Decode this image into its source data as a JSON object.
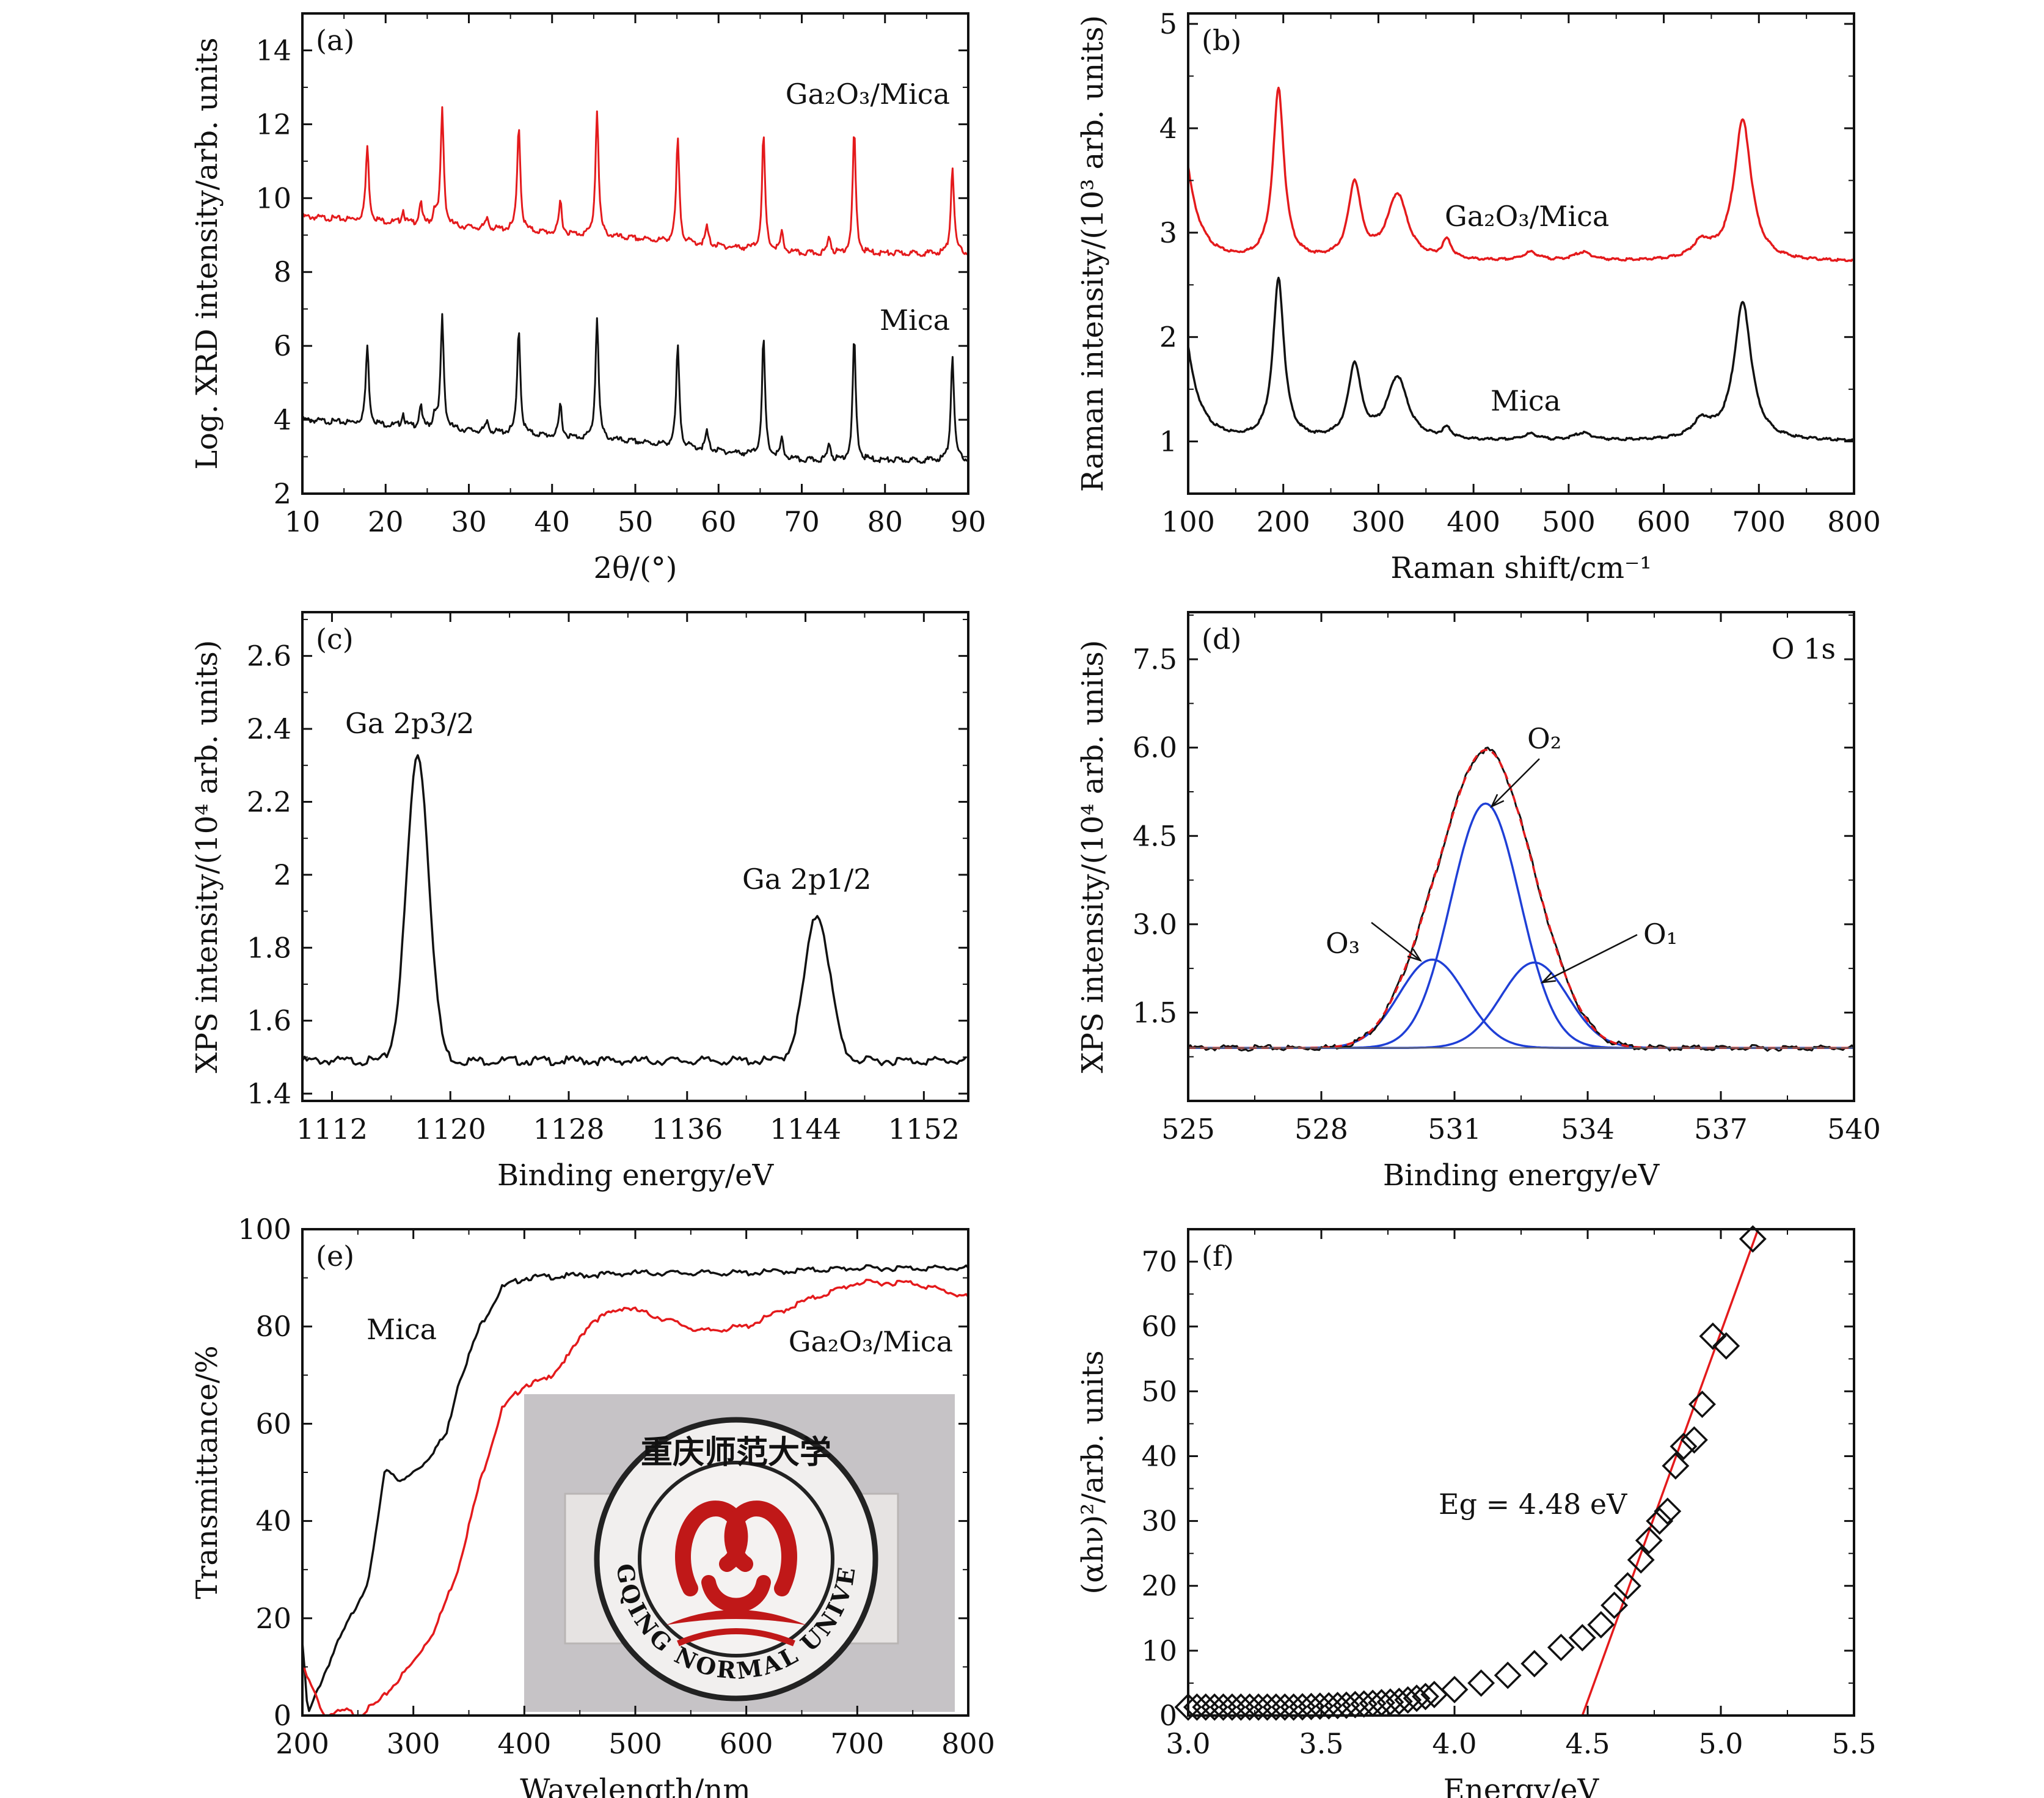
{
  "colors": {
    "mica": "#111111",
    "ga2o3_mica": "#e41a1c",
    "fit": "#1f3fd6",
    "fit_line": "#e41a1c",
    "axis": "#111111"
  },
  "panels": {
    "a": {
      "label": "(a)",
      "xlabel": "2θ/(°)",
      "ylabel": "Log. XRD intensity/arb. units",
      "ann_ga": "Ga₂O₃/Mica",
      "ann_mica": "Mica"
    },
    "b": {
      "label": "(b)",
      "xlabel": "Raman shift/cm⁻¹",
      "ylabel": "Raman intensity/(10³ arb. units)",
      "ann_ga": "Ga₂O₃/Mica",
      "ann_mica": "Mica"
    },
    "c": {
      "label": "(c)",
      "xlabel": "Binding energy/eV",
      "ylabel": "XPS intensity/(10⁴ arb. units)",
      "ann_p32": "Ga 2p3/2",
      "ann_p12": "Ga 2p1/2"
    },
    "d": {
      "label": "(d)",
      "xlabel": "Binding energy/eV",
      "ylabel": "XPS intensity/(10⁴ arb. units)",
      "ann_o1s": "O 1s",
      "ann_o1": "O₁",
      "ann_o2": "O₂",
      "ann_o3": "O₃"
    },
    "e": {
      "label": "(e)",
      "xlabel": "Wavelength/nm",
      "ylabel": "Transmittance/%",
      "ann_mica": "Mica",
      "ann_ga": "Ga₂O₃/Mica",
      "photo_text": "CHONGQING NORMAL UNIVERSITY",
      "photo_seal": "重庆师范大学"
    },
    "f": {
      "label": "(f)",
      "xlabel": "Energy/eV",
      "ylabel": "(αhν)²/arb. units",
      "ann_eg": "Eg = 4.48 eV"
    }
  },
  "chart_data": [
    {
      "panel": "a",
      "type": "line",
      "xlim": [
        10,
        90
      ],
      "ylim": [
        2,
        15
      ],
      "xticks": [
        10,
        20,
        30,
        40,
        50,
        60,
        70,
        80,
        90
      ],
      "yticks": [
        2,
        4,
        6,
        8,
        10,
        12,
        14
      ],
      "baseline": {
        "Mica": [
          [
            10,
            4.0
          ],
          [
            30,
            3.7
          ],
          [
            50,
            3.4
          ],
          [
            70,
            2.9
          ],
          [
            90,
            2.9
          ]
        ],
        "Ga2O3/Mica": [
          [
            10,
            9.5
          ],
          [
            30,
            9.2
          ],
          [
            50,
            8.9
          ],
          [
            70,
            8.5
          ],
          [
            90,
            8.5
          ]
        ]
      },
      "peaks_2theta": [
        17.8,
        26.8,
        36.0,
        45.4,
        55.1,
        65.4,
        76.3,
        88.1
      ],
      "series": [
        {
          "name": "Mica",
          "peak_heights": [
            6.0,
            6.8,
            6.5,
            6.8,
            6.0,
            6.2,
            6.2,
            5.8
          ]
        },
        {
          "name": "Ga2O3/Mica",
          "peak_heights": [
            11.4,
            12.4,
            12.0,
            12.4,
            11.6,
            11.7,
            11.8,
            10.9
          ]
        }
      ]
    },
    {
      "panel": "b",
      "type": "line",
      "xlim": [
        100,
        800
      ],
      "ylim": [
        0.5,
        5.1
      ],
      "xticks": [
        100,
        200,
        300,
        400,
        500,
        600,
        700,
        800
      ],
      "yticks": [
        1,
        2,
        3,
        4,
        5
      ],
      "peaks_cm": [
        195,
        275,
        320,
        372,
        460,
        515,
        640,
        683
      ],
      "series": [
        {
          "name": "Mica",
          "baseline": 1.0,
          "peak_heights": [
            2.53,
            1.71,
            1.6,
            1.1,
            1.06,
            1.07,
            1.17,
            2.32
          ]
        },
        {
          "name": "Ga2O3/Mica",
          "baseline": 2.72,
          "peak_heights": [
            4.35,
            3.45,
            3.35,
            2.9,
            2.8,
            2.8,
            2.88,
            4.07
          ]
        }
      ]
    },
    {
      "panel": "c",
      "type": "line",
      "xlim": [
        1110,
        1155
      ],
      "ylim": [
        1.38,
        2.72
      ],
      "xticks": [
        1112,
        1120,
        1128,
        1136,
        1144,
        1152
      ],
      "yticks": [
        1.4,
        1.6,
        1.8,
        2.0,
        2.2,
        2.4,
        2.6
      ],
      "baseline": 1.49,
      "peaks": [
        {
          "name": "Ga 2p3/2",
          "x": 1117.8,
          "y": 2.33
        },
        {
          "name": "Ga 2p1/2",
          "x": 1144.8,
          "y": 1.89
        }
      ]
    },
    {
      "panel": "d",
      "type": "line",
      "xlim": [
        525,
        540
      ],
      "ylim": [
        0,
        8.3
      ],
      "xticks": [
        525,
        528,
        531,
        534,
        537,
        540
      ],
      "yticks": [
        1.5,
        3.0,
        4.5,
        6.0,
        7.5
      ],
      "baseline": 0.9,
      "components": [
        {
          "name": "O1",
          "center": 532.8,
          "height": 2.35
        },
        {
          "name": "O2",
          "center": 531.7,
          "height": 5.05
        },
        {
          "name": "O3",
          "center": 530.5,
          "height": 2.4
        }
      ],
      "envelope_peak": {
        "x": 531.6,
        "y": 6.35
      }
    },
    {
      "panel": "e",
      "type": "line",
      "xlim": [
        200,
        800
      ],
      "ylim": [
        0,
        100
      ],
      "xticks": [
        200,
        300,
        400,
        500,
        600,
        700,
        800
      ],
      "yticks": [
        0,
        20,
        40,
        60,
        80,
        100
      ],
      "series": [
        {
          "name": "Mica",
          "points": [
            [
              200,
              15
            ],
            [
              205,
              0
            ],
            [
              215,
              6
            ],
            [
              230,
              14
            ],
            [
              260,
              28
            ],
            [
              275,
              51
            ],
            [
              290,
              48
            ],
            [
              310,
              52
            ],
            [
              330,
              58
            ],
            [
              340,
              68
            ],
            [
              360,
              80
            ],
            [
              380,
              88
            ],
            [
              400,
              90
            ],
            [
              500,
              91
            ],
            [
              600,
              91
            ],
            [
              700,
              92
            ],
            [
              800,
              92
            ]
          ]
        },
        {
          "name": "Ga2O3/Mica",
          "points": [
            [
              200,
              10
            ],
            [
              210,
              5
            ],
            [
              220,
              0
            ],
            [
              240,
              1
            ],
            [
              250,
              0
            ],
            [
              270,
              3
            ],
            [
              300,
              11
            ],
            [
              320,
              18
            ],
            [
              340,
              30
            ],
            [
              360,
              48
            ],
            [
              380,
              63
            ],
            [
              400,
              68
            ],
            [
              420,
              69
            ],
            [
              440,
              74
            ],
            [
              460,
              81
            ],
            [
              490,
              84
            ],
            [
              520,
              82
            ],
            [
              560,
              79
            ],
            [
              600,
              80
            ],
            [
              650,
              85
            ],
            [
              700,
              89
            ],
            [
              750,
              89
            ],
            [
              800,
              86
            ]
          ]
        }
      ]
    },
    {
      "panel": "f",
      "type": "scatter",
      "xlim": [
        3.0,
        5.5
      ],
      "ylim": [
        0,
        75
      ],
      "xticks": [
        3.0,
        3.5,
        4.0,
        4.5,
        5.0,
        5.5
      ],
      "yticks": [
        0,
        10,
        20,
        30,
        40,
        50,
        60,
        70
      ],
      "series": [
        {
          "name": "data",
          "points": [
            [
              3.0,
              1.3
            ],
            [
              3.2,
              1.3
            ],
            [
              3.4,
              1.3
            ],
            [
              3.6,
              1.6
            ],
            [
              3.8,
              2.2
            ],
            [
              3.9,
              3.0
            ],
            [
              4.0,
              4.0
            ],
            [
              4.1,
              5.0
            ],
            [
              4.2,
              6.2
            ],
            [
              4.3,
              8.0
            ],
            [
              4.4,
              10.5
            ],
            [
              4.48,
              12.0
            ],
            [
              4.55,
              14.0
            ],
            [
              4.6,
              17.0
            ],
            [
              4.65,
              20.0
            ],
            [
              4.7,
              24.0
            ],
            [
              4.73,
              27.0
            ],
            [
              4.77,
              30.0
            ],
            [
              4.8,
              31.5
            ],
            [
              4.83,
              38.5
            ],
            [
              4.86,
              41.5
            ],
            [
              4.9,
              42.5
            ],
            [
              4.93,
              48.0
            ],
            [
              4.97,
              58.5
            ],
            [
              5.02,
              57.0
            ],
            [
              5.12,
              73.5
            ]
          ]
        },
        {
          "name": "fit",
          "points": [
            [
              4.48,
              0
            ],
            [
              5.14,
              75
            ]
          ]
        }
      ],
      "annotation": "Eg = 4.48 eV"
    }
  ]
}
